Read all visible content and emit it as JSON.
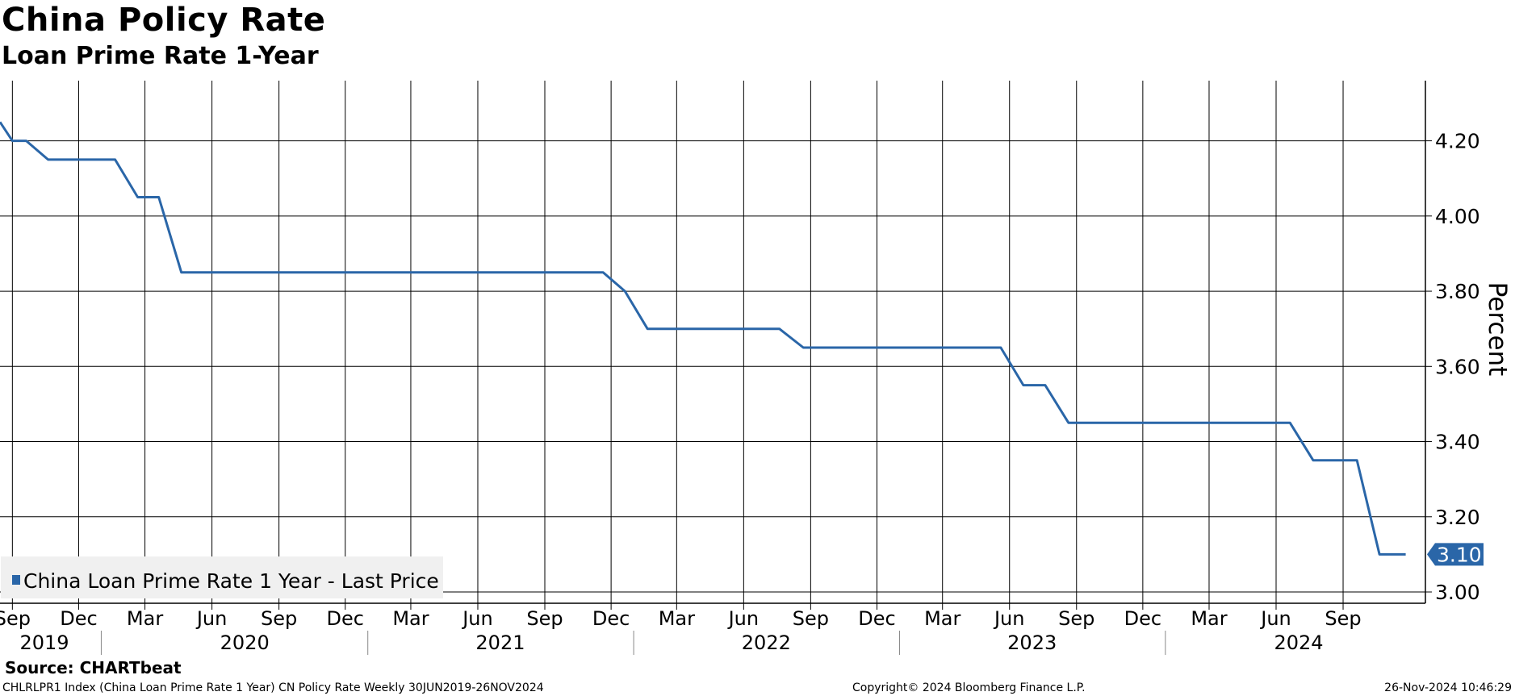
{
  "header": {
    "title": "China Policy Rate",
    "subtitle": "Loan Prime Rate 1-Year"
  },
  "colors": {
    "line": "#2a66a8",
    "grid": "#000000",
    "legend_bg": "#f0f0f0"
  },
  "chart_data": {
    "type": "line",
    "title": "China Policy Rate",
    "subtitle": "Loan Prime Rate 1-Year",
    "ylabel": "Percent",
    "ylim": [
      2.97,
      4.36
    ],
    "y_ticks": [
      "4.20",
      "4.00",
      "3.80",
      "3.60",
      "3.40",
      "3.20",
      "3.00"
    ],
    "xlim": [
      "2019-08-15",
      "2024-12-23"
    ],
    "x_tick_labels": [
      "Sep",
      "Dec",
      "Mar",
      "Jun",
      "Sep",
      "Dec",
      "Mar",
      "Jun",
      "Sep",
      "Dec",
      "Mar",
      "Jun",
      "Sep",
      "Dec",
      "Mar",
      "Jun",
      "Sep",
      "Dec",
      "Mar",
      "Jun",
      "Sep"
    ],
    "x_tick_dates": [
      "2019-09-01",
      "2019-12-01",
      "2020-03-01",
      "2020-06-01",
      "2020-09-01",
      "2020-12-01",
      "2021-03-01",
      "2021-06-01",
      "2021-09-01",
      "2021-12-01",
      "2022-03-01",
      "2022-06-01",
      "2022-09-01",
      "2022-12-01",
      "2023-03-01",
      "2023-06-01",
      "2023-09-01",
      "2023-12-01",
      "2024-03-01",
      "2024-06-01",
      "2024-09-01"
    ],
    "year_labels": [
      {
        "label": "2019",
        "date": "2019-10-15"
      },
      {
        "label": "2020",
        "date": "2020-07-16"
      },
      {
        "label": "2021",
        "date": "2021-07-02"
      },
      {
        "label": "2022",
        "date": "2022-07-02"
      },
      {
        "label": "2023",
        "date": "2023-07-02"
      },
      {
        "label": "2024",
        "date": "2024-07-02"
      }
    ],
    "year_boundaries": [
      "2020-01-01",
      "2021-01-01",
      "2022-01-01",
      "2023-01-01",
      "2024-01-01"
    ],
    "grid": true,
    "legend_position": "bottom-left",
    "series": [
      {
        "name": "China Loan Prime Rate 1 Year - Last Price",
        "points": [
          {
            "x": "2019-08-15",
            "y": 4.25
          },
          {
            "x": "2019-09-01",
            "y": 4.2
          },
          {
            "x": "2019-09-20",
            "y": 4.2
          },
          {
            "x": "2019-10-20",
            "y": 4.15
          },
          {
            "x": "2020-01-20",
            "y": 4.15
          },
          {
            "x": "2020-02-20",
            "y": 4.05
          },
          {
            "x": "2020-03-20",
            "y": 4.05
          },
          {
            "x": "2020-04-20",
            "y": 3.85
          },
          {
            "x": "2021-11-20",
            "y": 3.85
          },
          {
            "x": "2021-12-20",
            "y": 3.8
          },
          {
            "x": "2022-01-20",
            "y": 3.7
          },
          {
            "x": "2022-07-20",
            "y": 3.7
          },
          {
            "x": "2022-08-22",
            "y": 3.65
          },
          {
            "x": "2023-05-20",
            "y": 3.65
          },
          {
            "x": "2023-06-20",
            "y": 3.55
          },
          {
            "x": "2023-07-20",
            "y": 3.55
          },
          {
            "x": "2023-08-21",
            "y": 3.45
          },
          {
            "x": "2024-06-20",
            "y": 3.45
          },
          {
            "x": "2024-07-22",
            "y": 3.35
          },
          {
            "x": "2024-09-20",
            "y": 3.35
          },
          {
            "x": "2024-10-21",
            "y": 3.1
          },
          {
            "x": "2024-11-26",
            "y": 3.1
          }
        ]
      }
    ],
    "last_value_label": "3.10"
  },
  "footer": {
    "source": "Source: CHARTbeat",
    "left": "CHLRLPR1 Index (China Loan Prime Rate 1 Year) CN Policy Rate  Weekly 30JUN2019-26NOV2024",
    "center": "Copyright© 2024 Bloomberg Finance L.P.",
    "right": "26-Nov-2024 10:46:29"
  }
}
